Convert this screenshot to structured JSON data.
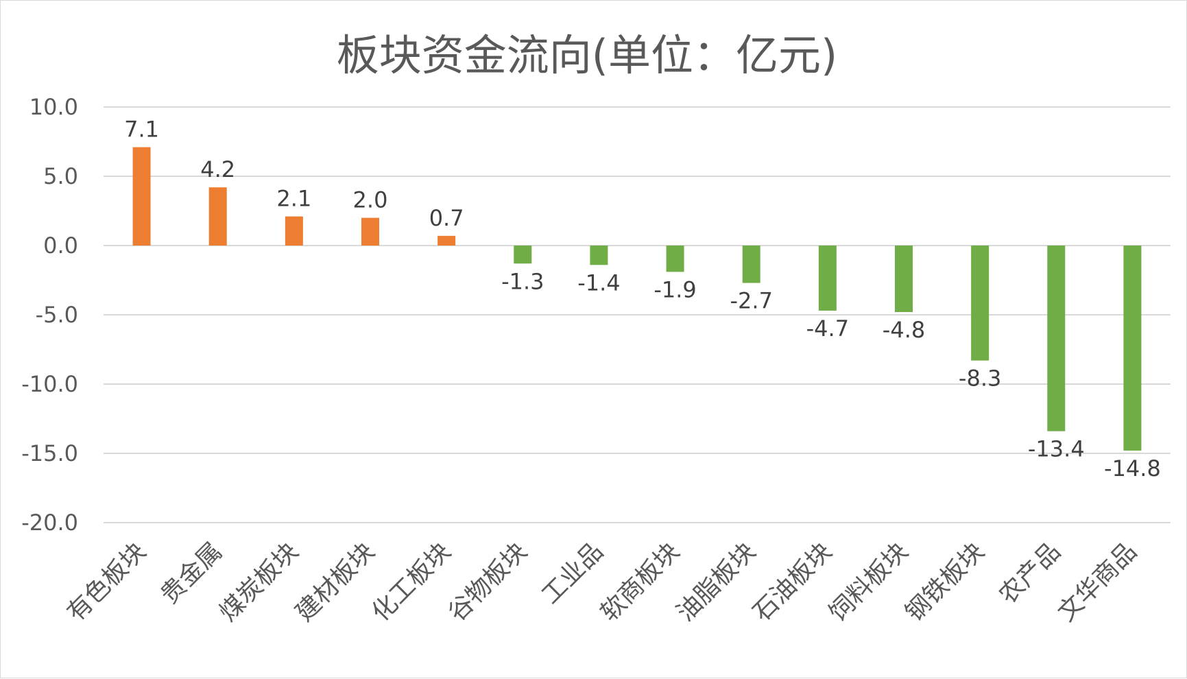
{
  "chart_data": {
    "type": "bar",
    "title": "板块资金流向(单位：亿元)",
    "categories": [
      "有色板块",
      "贵金属",
      "煤炭板块",
      "建材板块",
      "化工板块",
      "谷物板块",
      "工业品",
      "软商板块",
      "油脂板块",
      "石油板块",
      "饲料板块",
      "钢铁板块",
      "农产品",
      "文华商品"
    ],
    "values": [
      7.1,
      4.2,
      2.1,
      2.0,
      0.7,
      -1.3,
      -1.4,
      -1.9,
      -2.7,
      -4.7,
      -4.8,
      -8.3,
      -13.4,
      -14.8
    ],
    "value_labels": [
      "7.1",
      "4.2",
      "2.1",
      "2.0",
      "0.7",
      "-1.3",
      "-1.4",
      "-1.9",
      "-2.7",
      "-4.7",
      "-4.8",
      "-8.3",
      "-13.4",
      "-14.8"
    ],
    "ylim": [
      -20,
      10
    ],
    "yticks": [
      10,
      5,
      0,
      -5,
      -10,
      -15,
      -20
    ],
    "ytick_labels": [
      "10.0",
      "5.0",
      "0.0",
      "-5.0",
      "-10.0",
      "-15.0",
      "-20.0"
    ],
    "xlabel": "",
    "ylabel": "",
    "grid": true,
    "colors": {
      "positive": "#ed7d31",
      "negative": "#70ad47",
      "grid": "#d9d9d9",
      "text": "#595959"
    }
  }
}
